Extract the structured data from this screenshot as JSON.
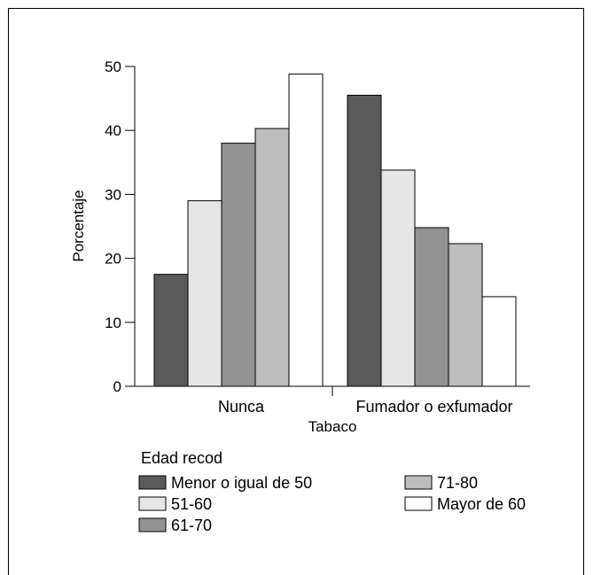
{
  "chart_data": {
    "type": "bar",
    "categories": [
      "Nunca",
      "Fumador o exfumador"
    ],
    "series": [
      {
        "name": "Menor o igual de 50",
        "color": "#5a5a5a",
        "values": [
          17.5,
          45.5
        ]
      },
      {
        "name": "51-60",
        "color": "#e6e6e6",
        "values": [
          29.0,
          33.8
        ]
      },
      {
        "name": "61-70",
        "color": "#939393",
        "values": [
          38.0,
          24.8
        ]
      },
      {
        "name": "71-80",
        "color": "#bdbdbd",
        "values": [
          40.3,
          22.3
        ]
      },
      {
        "name": "Mayor de 60",
        "color": "#ffffff",
        "values": [
          48.8,
          14.0
        ]
      }
    ],
    "xlabel": "Tabaco",
    "ylabel": "Porcentaje",
    "ylim": [
      0,
      50
    ],
    "yticks": [
      0,
      10,
      20,
      30,
      40,
      50
    ],
    "grid": false,
    "legend": {
      "title": "Edad recod",
      "position": "bottom-left"
    }
  }
}
